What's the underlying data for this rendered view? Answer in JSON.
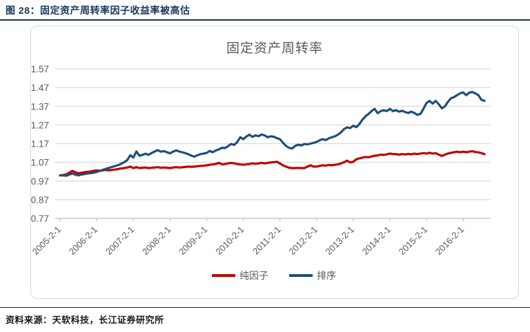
{
  "page": {
    "figure_label": "图 28：固定资产周转率因子收益率被高估",
    "source_note": "资料来源：天软科技，长江证券研究所"
  },
  "colors": {
    "header_blue": "#17375E",
    "title_gray": "#595959",
    "grid_gray": "#D9D9D9",
    "axis_gray": "#BFBFBF",
    "pure_factor_red": "#C00000",
    "rank_blue": "#1F4E79"
  },
  "chart_data": {
    "type": "line",
    "title": "固定资产周转率",
    "grid": "horizontal",
    "legend_position": "bottom",
    "y_axis": {
      "min": 0.77,
      "max": 1.57,
      "step": 0.1,
      "tick_labels": [
        "0.77",
        "0.87",
        "0.97",
        "1.07",
        "1.17",
        "1.27",
        "1.37",
        "1.47",
        "1.57"
      ]
    },
    "x_axis": {
      "start_month": "2005-02",
      "frequency": "monthly",
      "months_per_tick": 12,
      "total_months_span": 141,
      "tick_labels": [
        "2005-2-1",
        "2006-2-1",
        "2007-2-1",
        "2008-2-1",
        "2009-2-1",
        "2010-2-1",
        "2011-2-1",
        "2012-2-1",
        "2013-2-1",
        "2014-2-1",
        "2015-2-1",
        "2016-2-1"
      ]
    },
    "series": [
      {
        "name": "纯因子",
        "color": "#C00000",
        "values": [
          1.0,
          1.002,
          1.005,
          1.014,
          1.024,
          1.017,
          1.011,
          1.014,
          1.017,
          1.019,
          1.021,
          1.024,
          1.027,
          1.024,
          1.027,
          1.029,
          1.027,
          1.029,
          1.031,
          1.034,
          1.037,
          1.039,
          1.042,
          1.047,
          1.039,
          1.044,
          1.039,
          1.041,
          1.042,
          1.039,
          1.041,
          1.042,
          1.044,
          1.041,
          1.042,
          1.041,
          1.039,
          1.042,
          1.044,
          1.042,
          1.043,
          1.045,
          1.047,
          1.046,
          1.047,
          1.049,
          1.051,
          1.052,
          1.054,
          1.057,
          1.059,
          1.061,
          1.067,
          1.059,
          1.061,
          1.064,
          1.067,
          1.064,
          1.061,
          1.059,
          1.057,
          1.059,
          1.061,
          1.064,
          1.062,
          1.064,
          1.067,
          1.064,
          1.067,
          1.069,
          1.071,
          1.073,
          1.064,
          1.054,
          1.047,
          1.041,
          1.039,
          1.039,
          1.04,
          1.039,
          1.039,
          1.047,
          1.054,
          1.047,
          1.047,
          1.051,
          1.054,
          1.052,
          1.056,
          1.054,
          1.057,
          1.059,
          1.064,
          1.071,
          1.079,
          1.069,
          1.073,
          1.086,
          1.091,
          1.095,
          1.099,
          1.097,
          1.101,
          1.105,
          1.107,
          1.111,
          1.109,
          1.113,
          1.117,
          1.114,
          1.114,
          1.111,
          1.114,
          1.112,
          1.115,
          1.113,
          1.116,
          1.114,
          1.117,
          1.119,
          1.117,
          1.121,
          1.117,
          1.119,
          1.111,
          1.104,
          1.111,
          1.117,
          1.121,
          1.124,
          1.127,
          1.124,
          1.127,
          1.124,
          1.127,
          1.129,
          1.125,
          1.123,
          1.119,
          1.114
        ]
      },
      {
        "name": "排序",
        "color": "#1F4E79",
        "values": [
          1.0,
          1.0,
          0.998,
          1.004,
          1.01,
          1.004,
          1.0,
          1.004,
          1.007,
          1.01,
          1.012,
          1.014,
          1.018,
          1.024,
          1.03,
          1.035,
          1.04,
          1.045,
          1.05,
          1.055,
          1.062,
          1.07,
          1.082,
          1.108,
          1.095,
          1.128,
          1.105,
          1.11,
          1.116,
          1.11,
          1.12,
          1.128,
          1.135,
          1.127,
          1.13,
          1.124,
          1.118,
          1.127,
          1.134,
          1.128,
          1.124,
          1.119,
          1.113,
          1.106,
          1.1,
          1.108,
          1.114,
          1.117,
          1.12,
          1.131,
          1.124,
          1.133,
          1.139,
          1.148,
          1.146,
          1.156,
          1.168,
          1.163,
          1.178,
          1.204,
          1.194,
          1.208,
          1.218,
          1.206,
          1.214,
          1.21,
          1.219,
          1.214,
          1.204,
          1.209,
          1.207,
          1.199,
          1.194,
          1.174,
          1.158,
          1.147,
          1.144,
          1.158,
          1.164,
          1.16,
          1.168,
          1.166,
          1.17,
          1.174,
          1.179,
          1.188,
          1.194,
          1.189,
          1.198,
          1.204,
          1.209,
          1.218,
          1.23,
          1.248,
          1.257,
          1.253,
          1.266,
          1.258,
          1.274,
          1.298,
          1.316,
          1.329,
          1.344,
          1.356,
          1.333,
          1.344,
          1.349,
          1.344,
          1.356,
          1.344,
          1.349,
          1.341,
          1.346,
          1.339,
          1.334,
          1.341,
          1.334,
          1.324,
          1.329,
          1.356,
          1.388,
          1.399,
          1.384,
          1.399,
          1.381,
          1.359,
          1.369,
          1.393,
          1.413,
          1.419,
          1.429,
          1.439,
          1.444,
          1.429,
          1.443,
          1.446,
          1.439,
          1.429,
          1.404,
          1.399
        ]
      }
    ]
  }
}
